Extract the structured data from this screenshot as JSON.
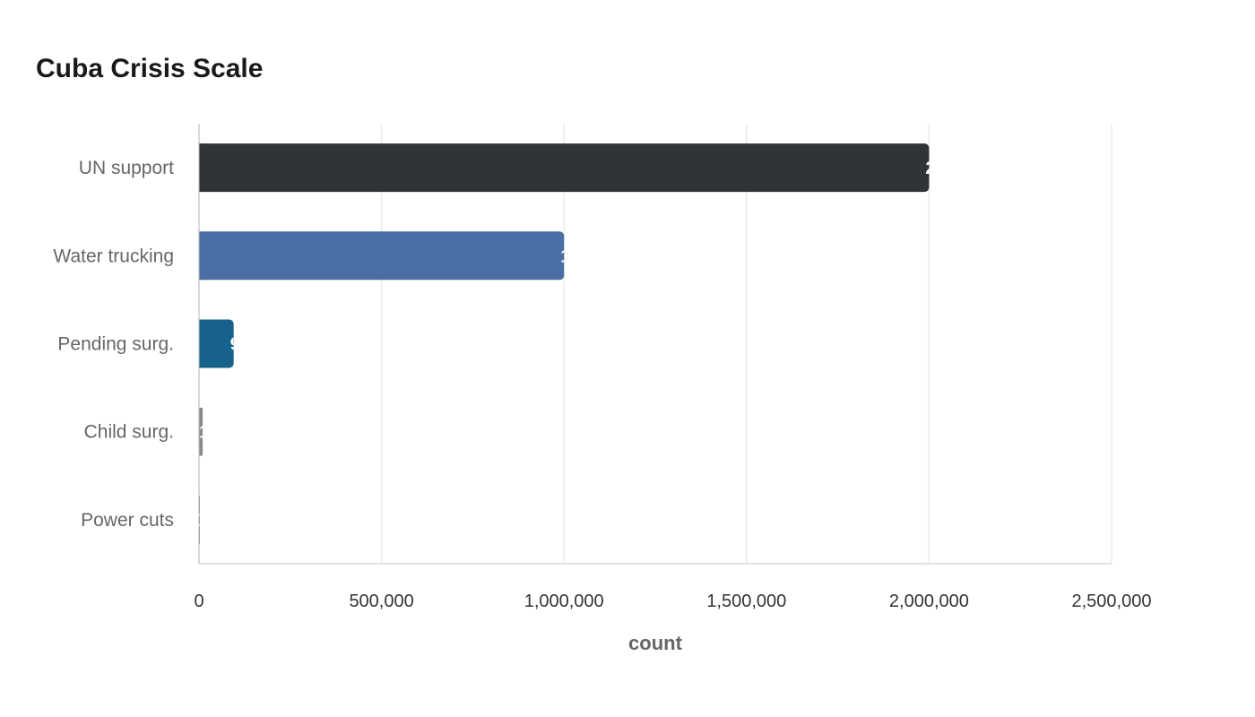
{
  "chart_data": {
    "type": "bar",
    "orientation": "horizontal",
    "title": "Cuba Crisis Scale",
    "xlabel": "count",
    "ylabel": "",
    "xlim": [
      0,
      2500000
    ],
    "x_ticks": [
      0,
      500000,
      1000000,
      1500000,
      2000000,
      2500000
    ],
    "x_tick_labels": [
      "0",
      "500,000",
      "1,000,000",
      "1,500,000",
      "2,000,000",
      "2,500,000"
    ],
    "grid": true,
    "categories": [
      "UN support",
      "Water trucking",
      "Pending surg.",
      "Child surg.",
      "Power cuts"
    ],
    "values": [
      2000000,
      1000000,
      95000,
      10000,
      1000
    ],
    "colors": [
      "#2e3438",
      "#4a6fa5",
      "#17628c",
      "#888888",
      "#888888"
    ]
  }
}
